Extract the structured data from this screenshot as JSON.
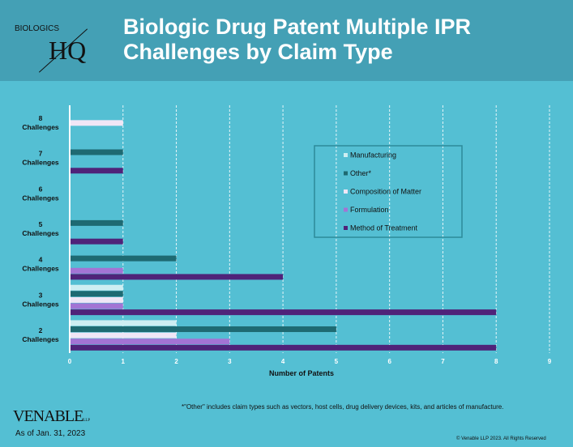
{
  "header": {
    "logo_top": "BIOLOGICS",
    "logo_main": "HQ",
    "title": "Biologic Drug Patent Multiple IPR Challenges by Claim Type"
  },
  "footer": {
    "logo": "VENABLE",
    "logo_suffix": "LLP",
    "as_of": "As of Jan. 31, 2023",
    "footnote": "*\"Other\" includes claim types such as vectors, host cells, drug delivery devices, kits, and articles of manufacture.",
    "copyright": "© Venable LLP 2023. All Rights Reserved"
  },
  "colors": {
    "background": "#54bfd3",
    "header": "#44a0b5"
  },
  "chart_data": {
    "type": "bar",
    "orientation": "horizontal",
    "title": "Biologic Drug Patent Multiple IPR Challenges by Claim Type",
    "xlabel": "Number of Patents",
    "ylabel": "",
    "xlim": [
      0,
      9
    ],
    "xticks": [
      "0",
      "1",
      "2",
      "3",
      "4",
      "5",
      "6",
      "7",
      "8",
      "9"
    ],
    "grid": "vertical dashed",
    "legend": "right",
    "categories": [
      "2 Challenges",
      "3 Challenges",
      "4 Challenges",
      "5 Challenges",
      "6 Challenges",
      "7 Challenges",
      "8 Challenges"
    ],
    "series": [
      {
        "name": "Manufacturing",
        "color": "#cdeef2",
        "values": [
          2,
          1,
          0,
          0,
          0,
          0,
          0
        ]
      },
      {
        "name": "Other*",
        "color": "#1e6a72",
        "values": [
          5,
          1,
          2,
          1,
          0,
          1,
          0
        ]
      },
      {
        "name": "Composition of Matter",
        "color": "#f0e6f6",
        "values": [
          2,
          1,
          0,
          0,
          0,
          0,
          1
        ]
      },
      {
        "name": "Formulation",
        "color": "#a374d4",
        "values": [
          3,
          1,
          1,
          0,
          0,
          0,
          0
        ]
      },
      {
        "name": "Method of Treatment",
        "color": "#4f2379",
        "values": [
          8,
          8,
          4,
          1,
          0,
          1,
          0
        ]
      }
    ]
  }
}
